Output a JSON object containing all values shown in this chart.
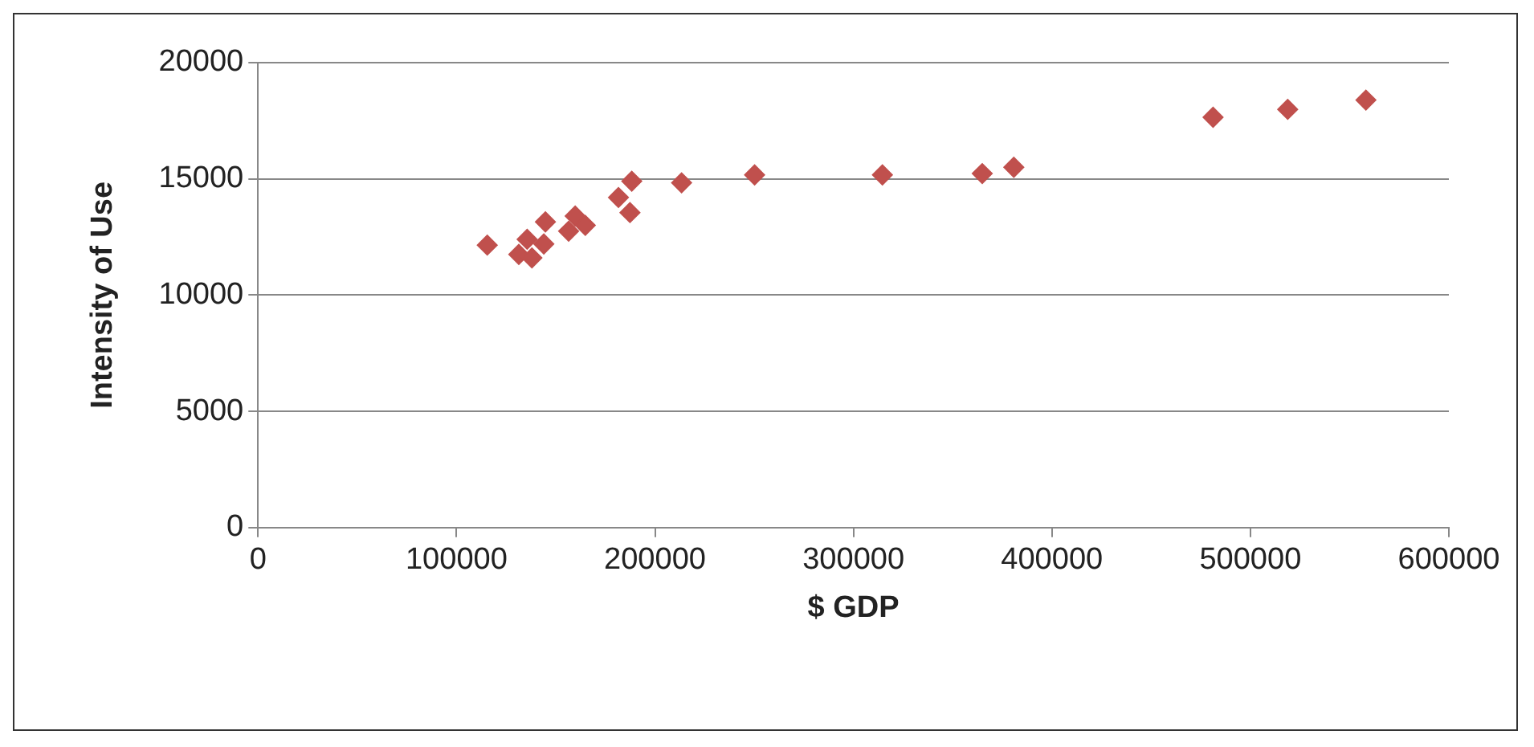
{
  "chart_data": {
    "type": "scatter",
    "xlabel": "$ GDP",
    "ylabel": "Intensity of Use",
    "x": [
      115500,
      131400,
      138000,
      135600,
      144000,
      144800,
      156500,
      159800,
      164900,
      181600,
      188300,
      187400,
      213400,
      250200,
      314600,
      364900,
      380800,
      481200,
      518800,
      558200
    ],
    "series": [
      {
        "color": "#c0504d",
        "values": [
          12150,
          11750,
          11600,
          12400,
          12200,
          13150,
          12750,
          13400,
          13000,
          14200,
          14900,
          13550,
          14830,
          15170,
          15170,
          15230,
          15500,
          17650,
          17990,
          18390
        ]
      }
    ],
    "xlim": [
      0,
      600000
    ],
    "xticks": [
      0,
      100000,
      200000,
      300000,
      400000,
      500000,
      600000
    ],
    "ylim": [
      0,
      20000
    ],
    "yticks": [
      0,
      5000,
      10000,
      15000,
      20000
    ],
    "grid": "y",
    "legend": false,
    "marker": "diamond"
  }
}
